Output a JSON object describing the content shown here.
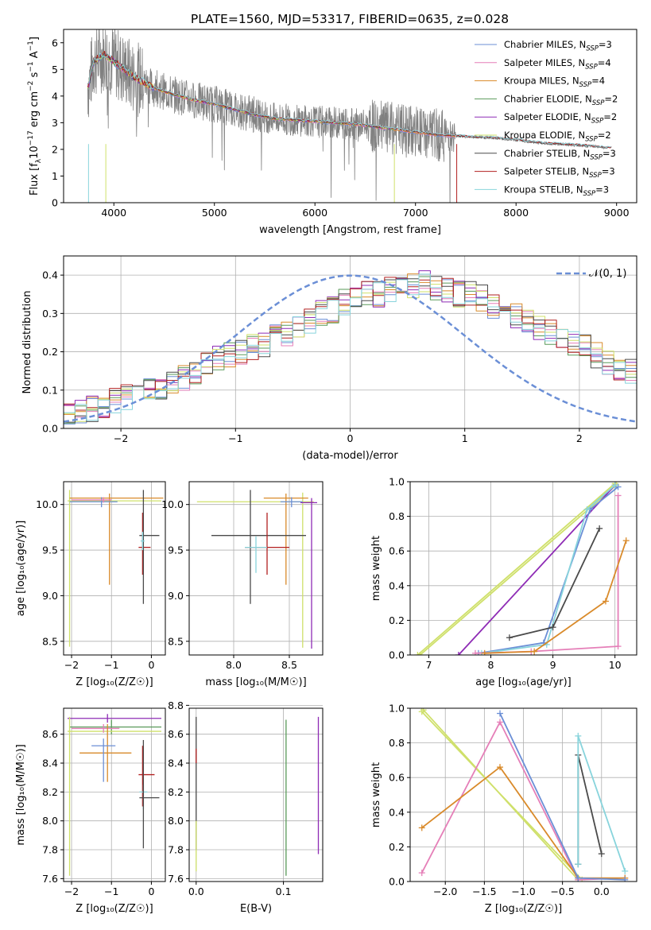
{
  "figure_title": "PLATE=1560, MJD=53317, FIBERID=0635, z=0.028",
  "colors": {
    "chabrier_miles": "#6b8fd6",
    "salpeter_miles": "#e57fb8",
    "kroupa_miles": "#d98a2a",
    "chabrier_elodie": "#5a9a5a",
    "salpeter_elodie": "#8e2bb5",
    "kroupa_elodie": "#cfe06a",
    "chabrier_stelib": "#4a4a4a",
    "salpeter_stelib": "#b22020",
    "kroupa_stelib": "#88d4dc",
    "data": "#808080",
    "gauss": "#6b8fd6",
    "orange": "#e07b28",
    "grid": "#b0b0b0"
  },
  "chart_data": [
    {
      "id": "spectrum",
      "type": "line",
      "xlabel": "wavelength [Angstrom, rest frame]",
      "ylabel_parts": [
        "Flux [f",
        "λ",
        "10",
        "−17",
        " erg cm",
        "−2",
        " s",
        "−1",
        " A",
        "−1",
        "]"
      ],
      "xlim": [
        3500,
        9200
      ],
      "ylim": [
        0,
        6.5
      ],
      "xticks": [
        4000,
        5000,
        6000,
        7000,
        8000,
        9000
      ],
      "yticks": [
        0,
        1,
        2,
        3,
        4,
        5,
        6
      ],
      "continuum_x": [
        3750,
        3800,
        3900,
        4000,
        4100,
        4200,
        4400,
        4600,
        4800,
        5000,
        5200,
        5400,
        5600,
        5800,
        6000,
        6200,
        6400,
        6600,
        6800,
        7000,
        7200,
        7400,
        7600,
        7800,
        8000,
        8200,
        8400,
        8600,
        8800,
        8900
      ],
      "continuum_y": [
        4.4,
        5.3,
        5.55,
        5.3,
        5.0,
        4.7,
        4.3,
        4.05,
        3.85,
        3.7,
        3.5,
        3.3,
        3.15,
        3.1,
        3.05,
        3.0,
        2.95,
        2.85,
        2.75,
        2.65,
        2.55,
        2.5,
        2.45,
        2.42,
        2.35,
        2.25,
        2.2,
        2.15,
        2.1,
        2.05
      ],
      "legend": [
        {
          "key": "chabrier_miles",
          "label": "Chabrier MILES, N",
          "sub": "SSP",
          "val": "=3"
        },
        {
          "key": "salpeter_miles",
          "label": "Salpeter MILES, N",
          "sub": "SSP",
          "val": "=4"
        },
        {
          "key": "kroupa_miles",
          "label": "Kroupa MILES, N",
          "sub": "SSP",
          "val": "=4"
        },
        {
          "key": "chabrier_elodie",
          "label": "Chabrier ELODIE, N",
          "sub": "SSP",
          "val": "=2"
        },
        {
          "key": "salpeter_elodie",
          "label": "Salpeter ELODIE, N",
          "sub": "SSP",
          "val": "=2"
        },
        {
          "key": "kroupa_elodie",
          "label": "Kroupa ELODIE, N",
          "sub": "SSP",
          "val": "=2"
        },
        {
          "key": "chabrier_stelib",
          "label": "Chabrier STELIB, N",
          "sub": "SSP",
          "val": "=3"
        },
        {
          "key": "salpeter_stelib",
          "label": "Salpeter STELIB, N",
          "sub": "SSP",
          "val": "=3"
        },
        {
          "key": "kroupa_stelib",
          "label": "Kroupa STELIB, N",
          "sub": "SSP",
          "val": "=3"
        }
      ]
    },
    {
      "id": "residuals",
      "type": "step",
      "xlabel": "(data-model)/error",
      "ylabel": "Normed distribution",
      "xlim": [
        -2.5,
        2.5
      ],
      "ylim": [
        0,
        0.45
      ],
      "xticks": [
        -2,
        -1,
        0,
        1,
        2
      ],
      "yticks": [
        0.0,
        0.1,
        0.2,
        0.3,
        0.4
      ],
      "gauss_label": "𝒩(0, 1)",
      "bin_start": -2.5,
      "bin_width": 0.1,
      "base_hist": [
        0.03,
        0.04,
        0.05,
        0.06,
        0.07,
        0.08,
        0.09,
        0.1,
        0.11,
        0.12,
        0.13,
        0.15,
        0.17,
        0.18,
        0.19,
        0.2,
        0.21,
        0.22,
        0.24,
        0.25,
        0.27,
        0.28,
        0.3,
        0.31,
        0.33,
        0.34,
        0.35,
        0.35,
        0.36,
        0.37,
        0.37,
        0.38,
        0.37,
        0.36,
        0.35,
        0.35,
        0.34,
        0.32,
        0.31,
        0.29,
        0.28,
        0.26,
        0.25,
        0.24,
        0.22,
        0.21,
        0.19,
        0.17,
        0.16,
        0.15
      ]
    },
    {
      "id": "age_vs_Z",
      "type": "errorbar",
      "xlabel": "Z [log₁₀(Z/Z☉)]",
      "ylabel": "age  [log₁₀(age/yr)]",
      "xlim": [
        -2.2,
        0.35
      ],
      "ylim": [
        8.35,
        10.25
      ],
      "xticks": [
        -2,
        -1,
        0
      ],
      "yticks": [
        8.5,
        9.0,
        9.5,
        10.0
      ],
      "points": [
        {
          "c": "kroupa_elodie",
          "x": -2.05,
          "xe": [
            0.05,
            2.3
          ],
          "y": 10.04,
          "ye": [
            1.6,
            0.12
          ]
        },
        {
          "c": "kroupa_miles",
          "x": -1.05,
          "xe": [
            1.0,
            1.35
          ],
          "y": 10.07,
          "ye": [
            0.95,
            0.05
          ]
        },
        {
          "c": "chabrier_miles",
          "x": -1.25,
          "xe": [
            0.8,
            0.4
          ],
          "y": 10.03,
          "ye": [
            0.06,
            0.05
          ]
        },
        {
          "c": "salpeter_miles",
          "x": -1.2,
          "xe": [
            0.8,
            0.2
          ],
          "y": 10.05,
          "ye": [
            0.03,
            0.03
          ]
        },
        {
          "c": "salpeter_stelib",
          "x": -0.22,
          "xe": [
            0.1,
            0.2
          ],
          "y": 9.53,
          "ye": [
            0.3,
            0.38
          ]
        },
        {
          "c": "chabrier_stelib",
          "x": -0.2,
          "xe": [
            0.1,
            0.4
          ],
          "y": 9.66,
          "ye": [
            0.75,
            0.5
          ]
        },
        {
          "c": "kroupa_stelib",
          "x": -0.22,
          "xe": [
            0.05,
            0.05
          ],
          "y": 9.6,
          "ye": [
            0.1,
            0.1
          ]
        }
      ]
    },
    {
      "id": "age_vs_mass",
      "type": "errorbar",
      "xlabel": "mass [log₁₀(M/M☉)]",
      "xlim": [
        7.6,
        8.8
      ],
      "ylim": [
        8.35,
        10.25
      ],
      "xticks": [
        8.0,
        8.5
      ],
      "yticks": [
        8.5,
        9.0,
        9.5,
        10.0
      ],
      "points": [
        {
          "c": "kroupa_elodie",
          "x": 8.62,
          "xe": [
            0.95,
            0.1
          ],
          "y": 10.03,
          "ye": [
            1.6,
            0.1
          ]
        },
        {
          "c": "salpeter_elodie",
          "x": 8.7,
          "xe": [
            0.1,
            0.05
          ],
          "y": 10.02,
          "ye": [
            1.6,
            0.05
          ]
        },
        {
          "c": "kroupa_miles",
          "x": 8.47,
          "xe": [
            0.2,
            0.2
          ],
          "y": 10.07,
          "ye": [
            0.95,
            0.05
          ]
        },
        {
          "c": "chabrier_miles",
          "x": 8.52,
          "xe": [
            0.1,
            0.1
          ],
          "y": 10.03,
          "ye": [
            0.06,
            0.05
          ]
        },
        {
          "c": "chabrier_stelib",
          "x": 8.15,
          "xe": [
            0.35,
            0.5
          ],
          "y": 9.66,
          "ye": [
            0.75,
            0.5
          ]
        },
        {
          "c": "salpeter_stelib",
          "x": 8.3,
          "xe": [
            0.2,
            0.2
          ],
          "y": 9.53,
          "ye": [
            0.3,
            0.38
          ]
        },
        {
          "c": "kroupa_stelib",
          "x": 8.2,
          "xe": [
            0.1,
            0.1
          ],
          "y": 9.53,
          "ye": [
            0.28,
            0.12
          ]
        }
      ]
    },
    {
      "id": "weight_vs_age",
      "type": "line",
      "xlabel": "age  [log₁₀(age/yr)]",
      "ylabel": "mass weight",
      "xlim": [
        6.7,
        10.35
      ],
      "ylim": [
        0,
        1.0
      ],
      "xticks": [
        7,
        8,
        9,
        10
      ],
      "yticks": [
        0.0,
        0.2,
        0.4,
        0.6,
        0.8,
        1.0
      ],
      "series": [
        {
          "c": "kroupa_elodie",
          "x": [
            6.82,
            10.0
          ],
          "y": [
            0.0,
            0.99
          ]
        },
        {
          "c": "kroupa_elodie",
          "x": [
            6.86,
            10.02
          ],
          "y": [
            0.0,
            0.98
          ]
        },
        {
          "c": "salpeter_elodie",
          "x": [
            7.48,
            10.0
          ],
          "y": [
            0.0,
            0.98
          ]
        },
        {
          "c": "chabrier_miles",
          "x": [
            7.8,
            8.85,
            9.6,
            10.05
          ],
          "y": [
            0.01,
            0.07,
            0.84,
            0.97
          ]
        },
        {
          "c": "kroupa_stelib",
          "x": [
            7.85,
            8.9,
            9.55,
            10.0
          ],
          "y": [
            0.01,
            0.06,
            0.84,
            0.98
          ]
        },
        {
          "c": "chabrier_stelib",
          "x": [
            8.3,
            9.0,
            9.75
          ],
          "y": [
            0.1,
            0.16,
            0.73
          ]
        },
        {
          "c": "salpeter_miles",
          "x": [
            7.75,
            8.65,
            10.05,
            10.05
          ],
          "y": [
            0.01,
            0.02,
            0.05,
            0.92
          ]
        },
        {
          "c": "kroupa_miles",
          "x": [
            7.9,
            8.7,
            9.85,
            10.18
          ],
          "y": [
            0.01,
            0.02,
            0.31,
            0.66
          ]
        }
      ]
    },
    {
      "id": "mass_vs_Z",
      "type": "errorbar",
      "xlabel": "Z [log₁₀(Z/Z☉)]",
      "ylabel": "mass [log₁₀(M/M☉)]",
      "xlim": [
        -2.2,
        0.35
      ],
      "ylim": [
        7.58,
        8.78
      ],
      "xticks": [
        -2,
        -1,
        0
      ],
      "yticks": [
        7.6,
        7.8,
        8.0,
        8.2,
        8.4,
        8.6
      ],
      "points": [
        {
          "c": "salpeter_elodie",
          "x": -1.1,
          "xe": [
            1.0,
            1.35
          ],
          "y": 8.71,
          "ye": [
            0.03,
            0.03
          ]
        },
        {
          "c": "chabrier_elodie",
          "x": -1.0,
          "xe": [
            1.05,
            1.25
          ],
          "y": 8.65,
          "ye": [
            0.05,
            0.05
          ]
        },
        {
          "c": "kroupa_elodie",
          "x": -2.05,
          "xe": [
            0.05,
            2.3
          ],
          "y": 8.62,
          "ye": [
            1.0,
            0.1
          ]
        },
        {
          "c": "salpeter_miles",
          "x": -1.2,
          "xe": [
            0.8,
            0.4
          ],
          "y": 8.64,
          "ye": [
            0.03,
            0.03
          ]
        },
        {
          "c": "kroupa_miles",
          "x": -1.1,
          "xe": [
            0.7,
            0.6
          ],
          "y": 8.47,
          "ye": [
            0.2,
            0.2
          ]
        },
        {
          "c": "chabrier_miles",
          "x": -1.2,
          "xe": [
            0.3,
            0.3
          ],
          "y": 8.52,
          "ye": [
            0.25,
            0.05
          ]
        },
        {
          "c": "salpeter_stelib",
          "x": -0.22,
          "xe": [
            0.1,
            0.3
          ],
          "y": 8.32,
          "ye": [
            0.22,
            0.2
          ]
        },
        {
          "c": "kroupa_stelib",
          "x": -0.2,
          "xe": [
            0.1,
            0.1
          ],
          "y": 8.2,
          "ye": [
            0.12,
            0.05
          ]
        },
        {
          "c": "chabrier_stelib",
          "x": -0.2,
          "xe": [
            0.1,
            0.4
          ],
          "y": 8.16,
          "ye": [
            0.35,
            0.4
          ]
        }
      ]
    },
    {
      "id": "mass_vs_ebv",
      "type": "errorbar",
      "xlabel": "E(B-V)",
      "xlim": [
        -0.008,
        0.145
      ],
      "ylim": [
        7.58,
        8.78
      ],
      "xticks": [
        0.0,
        0.1
      ],
      "yticks": [
        7.6,
        7.8,
        8.0,
        8.2,
        8.4,
        8.6,
        8.8
      ],
      "points": [
        {
          "c": "chabrier_stelib",
          "x": 0.0,
          "xe": [
            0,
            0
          ],
          "y": 8.2,
          "ye": [
            0.4,
            0.52
          ]
        },
        {
          "c": "salpeter_stelib",
          "x": 0.0,
          "xe": [
            0,
            0
          ],
          "y": 8.45,
          "ye": [
            0.05,
            0.05
          ]
        },
        {
          "c": "kroupa_elodie",
          "x": 0.0,
          "xe": [
            0,
            0
          ],
          "y": 7.9,
          "ye": [
            0.25,
            0.1
          ]
        },
        {
          "c": "chabrier_elodie",
          "x": 0.103,
          "xe": [
            0,
            0
          ],
          "y": 8.2,
          "ye": [
            0.58,
            0.5
          ]
        },
        {
          "c": "salpeter_elodie",
          "x": 0.14,
          "xe": [
            0,
            0
          ],
          "y": 8.2,
          "ye": [
            0.43,
            0.52
          ]
        }
      ]
    },
    {
      "id": "weight_vs_Z",
      "type": "line",
      "xlabel": "Z [log₁₀(Z/Z☉)]",
      "ylabel": "mass weight",
      "xlim": [
        -2.45,
        0.45
      ],
      "ylim": [
        0,
        1.0
      ],
      "xticks": [
        -2.0,
        -1.5,
        -1.0,
        -0.5,
        0.0
      ],
      "yticks": [
        0.0,
        0.2,
        0.4,
        0.6,
        0.8,
        1.0
      ],
      "series": [
        {
          "c": "kroupa_elodie",
          "x": [
            -2.28,
            -0.3
          ],
          "y": [
            0.99,
            0.01
          ]
        },
        {
          "c": "kroupa_elodie",
          "x": [
            -2.3,
            -0.25
          ],
          "y": [
            0.98,
            0.01
          ]
        },
        {
          "c": "salpeter_miles",
          "x": [
            -2.3,
            -1.3,
            -0.3,
            0.3
          ],
          "y": [
            0.05,
            0.92,
            0.01,
            0.02
          ]
        },
        {
          "c": "kroupa_miles",
          "x": [
            -2.3,
            -1.3,
            -0.3,
            0.3
          ],
          "y": [
            0.31,
            0.66,
            0.02,
            0.02
          ]
        },
        {
          "c": "chabrier_miles",
          "x": [
            -1.3,
            -0.3,
            0.3
          ],
          "y": [
            0.97,
            0.02,
            0.01
          ]
        },
        {
          "c": "chabrier_stelib",
          "x": [
            -0.3,
            -0.3,
            0.0
          ],
          "y": [
            0.1,
            0.73,
            0.16
          ]
        },
        {
          "c": "kroupa_stelib",
          "x": [
            -0.3,
            -0.3,
            0.3
          ],
          "y": [
            0.1,
            0.84,
            0.06
          ]
        }
      ]
    }
  ]
}
